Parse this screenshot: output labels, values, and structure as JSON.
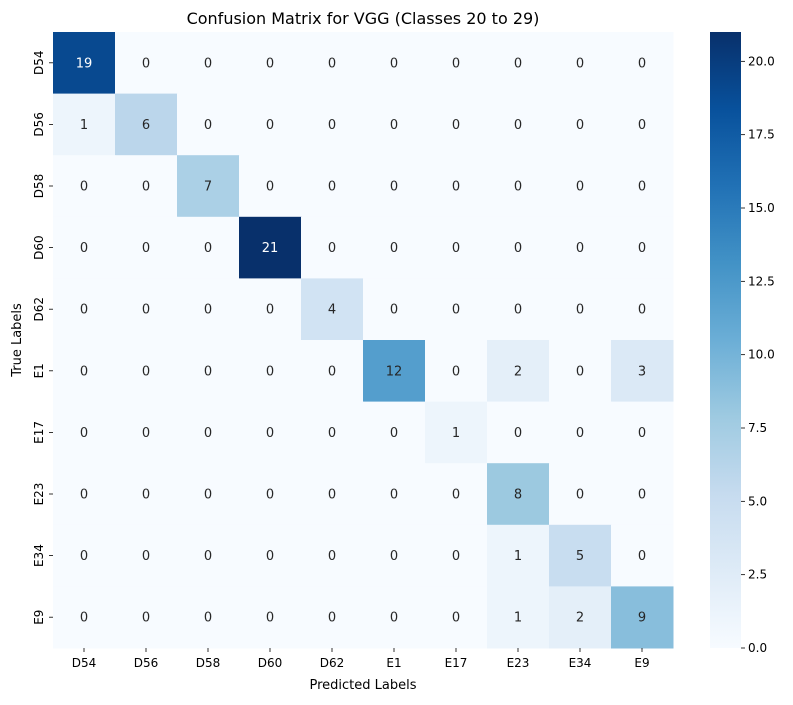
{
  "chart_data": {
    "type": "heatmap",
    "title": "Confusion Matrix for VGG (Classes 20 to 29)",
    "xlabel": "Predicted Labels",
    "ylabel": "True Labels",
    "x_categories": [
      "D54",
      "D56",
      "D58",
      "D60",
      "D62",
      "E1",
      "E17",
      "E23",
      "E34",
      "E9"
    ],
    "y_categories": [
      "D54",
      "D56",
      "D58",
      "D60",
      "D62",
      "E1",
      "E17",
      "E23",
      "E34",
      "E9"
    ],
    "matrix": [
      [
        19,
        0,
        0,
        0,
        0,
        0,
        0,
        0,
        0,
        0
      ],
      [
        1,
        6,
        0,
        0,
        0,
        0,
        0,
        0,
        0,
        0
      ],
      [
        0,
        0,
        7,
        0,
        0,
        0,
        0,
        0,
        0,
        0
      ],
      [
        0,
        0,
        0,
        21,
        0,
        0,
        0,
        0,
        0,
        0
      ],
      [
        0,
        0,
        0,
        0,
        4,
        0,
        0,
        0,
        0,
        0
      ],
      [
        0,
        0,
        0,
        0,
        0,
        12,
        0,
        2,
        0,
        3
      ],
      [
        0,
        0,
        0,
        0,
        0,
        0,
        1,
        0,
        0,
        0
      ],
      [
        0,
        0,
        0,
        0,
        0,
        0,
        0,
        8,
        0,
        0
      ],
      [
        0,
        0,
        0,
        0,
        0,
        0,
        0,
        1,
        5,
        0
      ],
      [
        0,
        0,
        0,
        0,
        0,
        0,
        0,
        1,
        2,
        9
      ]
    ],
    "colorbar": {
      "range": [
        0,
        21
      ],
      "ticks": [
        0.0,
        2.5,
        5.0,
        7.5,
        10.0,
        12.5,
        15.0,
        17.5,
        20.0
      ],
      "tick_labels": [
        "0.0",
        "2.5",
        "5.0",
        "7.5",
        "10.0",
        "12.5",
        "15.0",
        "17.5",
        "20.0"
      ],
      "colormap": "Blues",
      "color_stops": [
        "#f7fbff",
        "#deebf7",
        "#c6dbef",
        "#9ecae1",
        "#6baed6",
        "#4292c6",
        "#2171b5",
        "#08519c",
        "#08306b"
      ]
    },
    "annotation_colors": {
      "light_text": "#ffffff",
      "dark_text": "#262626"
    }
  }
}
